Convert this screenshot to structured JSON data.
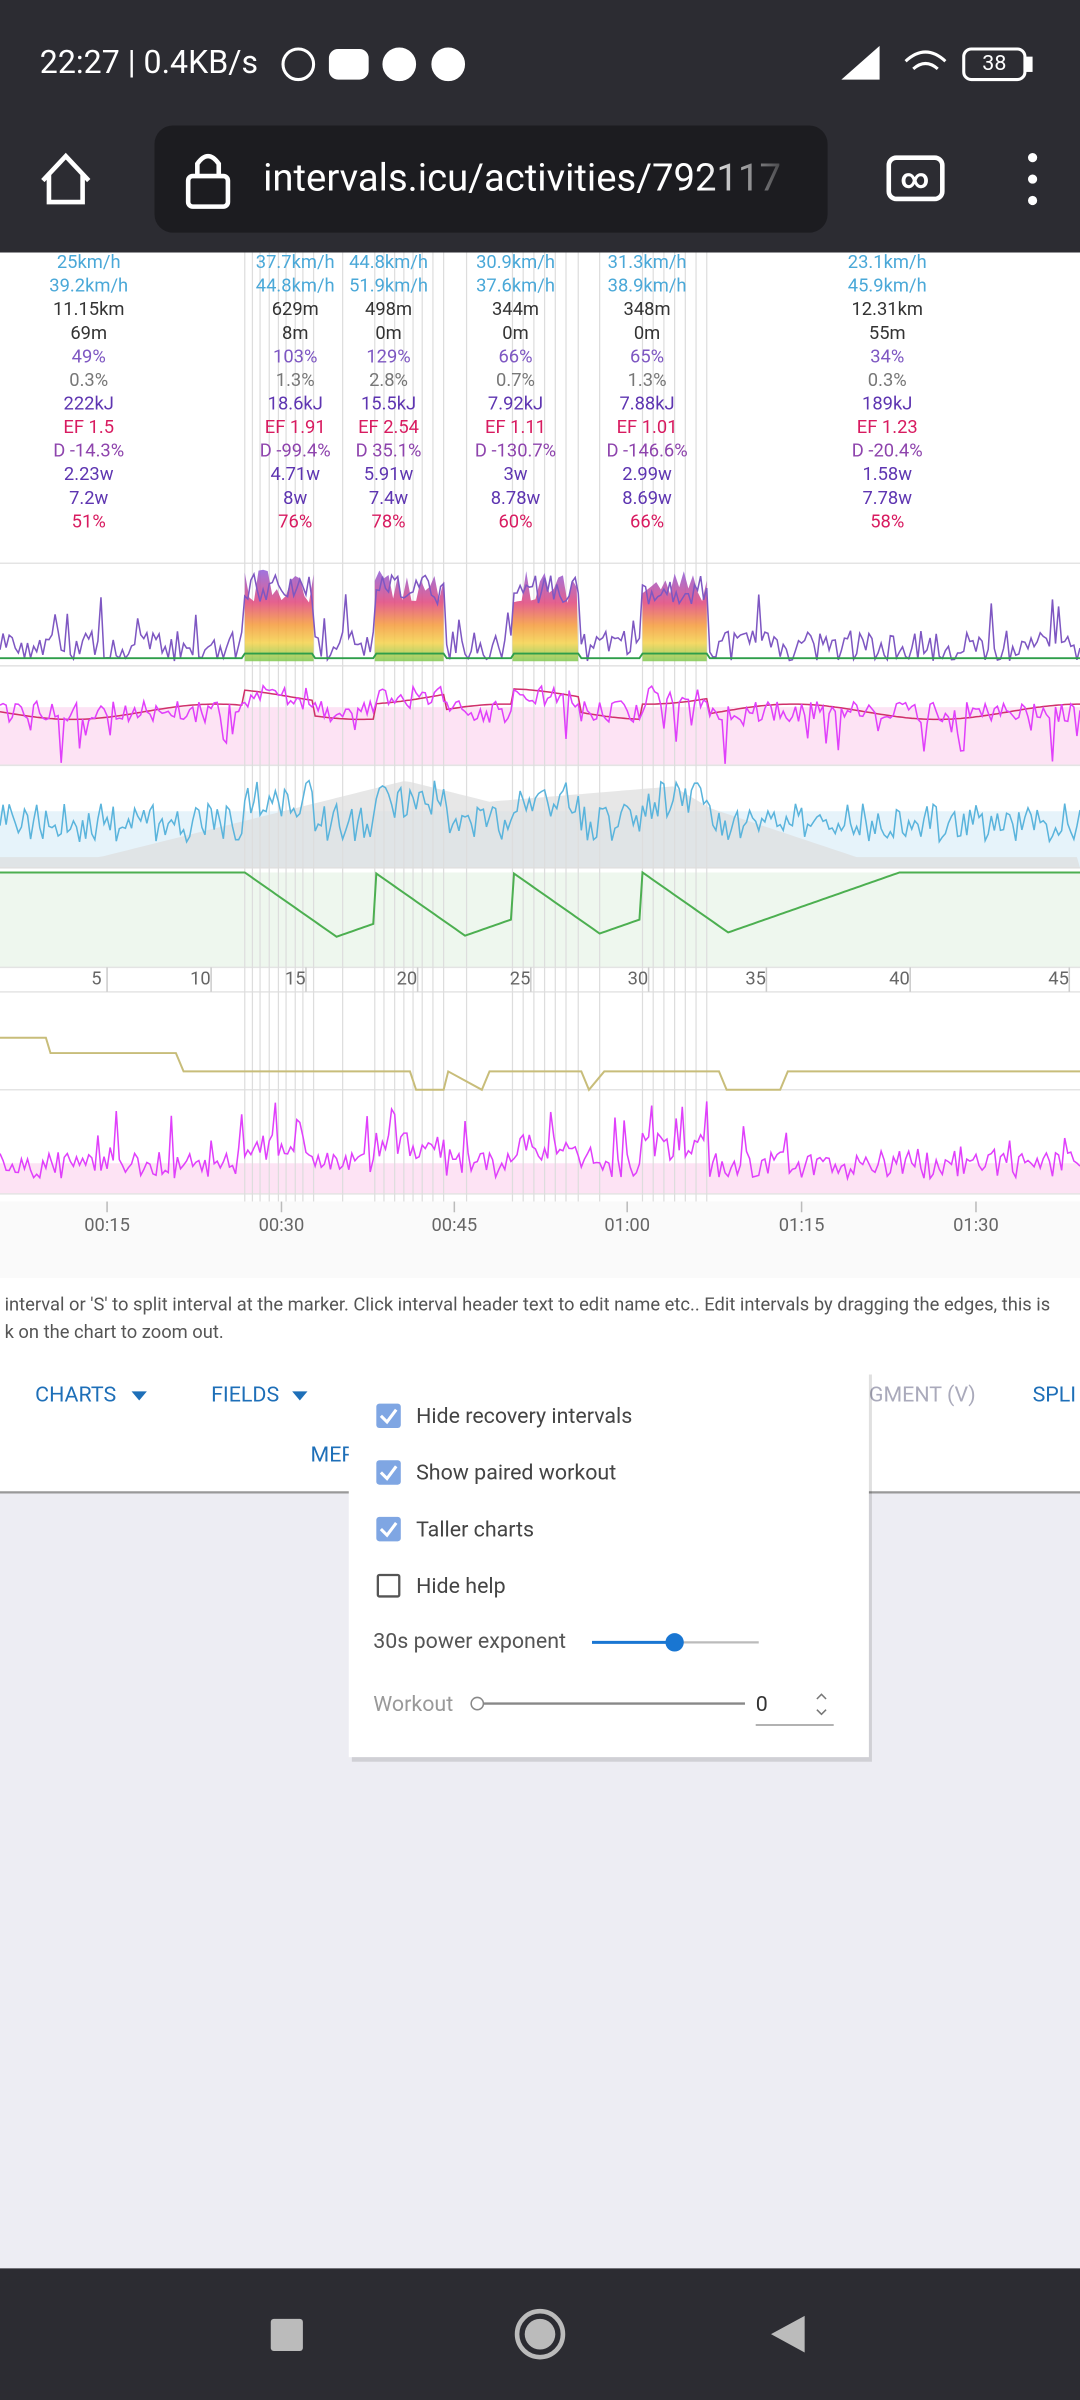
{
  "status_bar": {
    "time": "22:27 | 0.4KB/s",
    "battery": "38"
  },
  "browser": {
    "url": "intervals.icu/activities/792117"
  },
  "intervals": [
    [
      "25km/h",
      "39.2km/h",
      "11.15km",
      "69m",
      "49%",
      "0.3%",
      "222kJ",
      "EF 1.5",
      "D -14.3%",
      "2.23w",
      "7.2w",
      "51%"
    ],
    [
      "37.7km/h",
      "44.8km/h",
      "629m",
      "8m",
      "103%",
      "1.3%",
      "18.6kJ",
      "EF 1.91",
      "D -99.4%",
      "4.71w",
      "8w",
      "76%"
    ],
    [
      "44.8km/h",
      "51.9km/h",
      "498m",
      "0m",
      "129%",
      "2.8%",
      "15.5kJ",
      "EF 2.54",
      "D 35.1%",
      "5.91w",
      "7.4w",
      "78%"
    ],
    [
      "30.9km/h",
      "37.6km/h",
      "344m",
      "0m",
      "66%",
      "0.7%",
      "7.92kJ",
      "EF 1.11",
      "D -130.7%",
      "3w",
      "8.78w",
      "60%"
    ],
    [
      "31.3km/h",
      "38.9km/h",
      "348m",
      "0m",
      "65%",
      "1.3%",
      "7.88kJ",
      "EF 1.01",
      "D -146.6%",
      "2.99w",
      "8.69w",
      "66%"
    ],
    [
      "23.1km/h",
      "45.9km/h",
      "12.31km",
      "55m",
      "34%",
      "0.3%",
      "189kJ",
      "EF 1.23",
      "D -20.4%",
      "1.58w",
      "7.78w",
      "58%"
    ]
  ],
  "distance_axis": [
    "5",
    "10",
    "15",
    "20",
    "25",
    "30",
    "35",
    "40",
    "45"
  ],
  "time_axis": [
    "00:15",
    "00:30",
    "00:45",
    "01:00",
    "01:15",
    "01:30"
  ],
  "help": [
    "interval or 'S' to split interval at the marker. Click interval header text to edit name etc.. Edit intervals by dragging the edges, this is",
    "k on the chart to zoom out."
  ],
  "toolbar": {
    "charts": "CHARTS",
    "fields": "FIELDS",
    "segment": "GMENT (V)",
    "split": "SPLI",
    "merge": "MER"
  },
  "popup": {
    "options": [
      {
        "label": "Hide recovery intervals",
        "checked": true
      },
      {
        "label": "Show paired workout",
        "checked": true
      },
      {
        "label": "Taller charts",
        "checked": true
      },
      {
        "label": "Hide help",
        "checked": false
      }
    ],
    "power_exponent": "30s power exponent",
    "workout": {
      "label": "Workout",
      "value": "0"
    }
  }
}
